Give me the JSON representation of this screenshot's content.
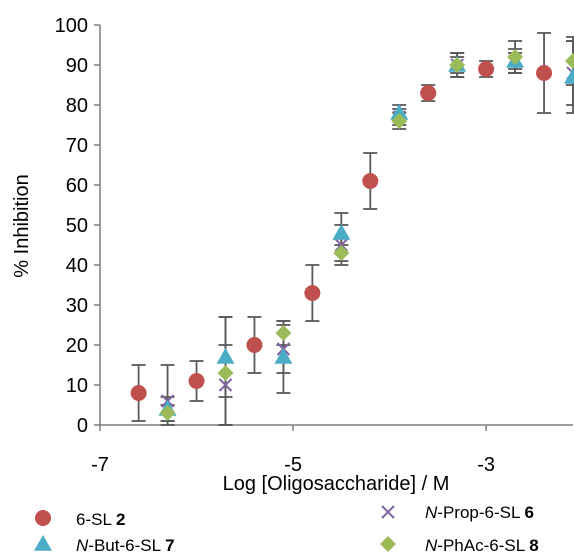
{
  "chart_data": {
    "type": "scatter",
    "xlabel": "Log [Oligosaccharide] / M",
    "ylabel": "% Inhibition",
    "xlim": [
      -7,
      -2.1
    ],
    "ylim": [
      0,
      100
    ],
    "x_ticks": [
      -7,
      -5,
      -3
    ],
    "y_ticks": [
      0,
      10,
      20,
      30,
      40,
      50,
      60,
      70,
      80,
      90,
      100
    ],
    "grid": false,
    "legend_position": "bottom",
    "series": [
      {
        "legend_prefix": "",
        "legend_main": "6-SL ",
        "legend_num": "2",
        "marker": "circle",
        "color": "#c0504d",
        "points": [
          {
            "x": -6.6,
            "y": 8,
            "err": 7
          },
          {
            "x": -6.0,
            "y": 11,
            "err": 5
          },
          {
            "x": -5.4,
            "y": 20,
            "err": 7
          },
          {
            "x": -4.8,
            "y": 33,
            "err": 7
          },
          {
            "x": -4.2,
            "y": 61,
            "err": 7
          },
          {
            "x": -3.6,
            "y": 83,
            "err": 2
          },
          {
            "x": -3.0,
            "y": 89,
            "err": 2
          },
          {
            "x": -2.4,
            "y": 88,
            "err": 10
          }
        ]
      },
      {
        "legend_prefix": "N",
        "legend_main": "-Prop-6-SL ",
        "legend_num": "6",
        "marker": "cross",
        "color": "#8064a2",
        "points": [
          {
            "x": -6.3,
            "y": 6,
            "err": 9
          },
          {
            "x": -5.7,
            "y": 10,
            "err": 10
          },
          {
            "x": -5.1,
            "y": 19,
            "err": 6
          },
          {
            "x": -4.5,
            "y": 45,
            "err": 5
          },
          {
            "x": -3.9,
            "y": 77,
            "err": 2
          },
          {
            "x": -3.3,
            "y": 90,
            "err": 2
          },
          {
            "x": -2.7,
            "y": 91,
            "err": 3
          },
          {
            "x": -2.1,
            "y": 88,
            "err": 8
          }
        ]
      },
      {
        "legend_prefix": "N",
        "legend_main": "-But-6-SL ",
        "legend_num": "7",
        "marker": "triangle",
        "color": "#4bacc6",
        "points": [
          {
            "x": -6.3,
            "y": 4,
            "err": 3
          },
          {
            "x": -5.7,
            "y": 17,
            "err": 10
          },
          {
            "x": -5.1,
            "y": 17,
            "err": 9
          },
          {
            "x": -4.5,
            "y": 48,
            "err": 5
          },
          {
            "x": -3.9,
            "y": 78,
            "err": 2
          },
          {
            "x": -3.3,
            "y": 90,
            "err": 3
          },
          {
            "x": -2.7,
            "y": 91,
            "err": 2
          },
          {
            "x": -2.1,
            "y": 87,
            "err": 9
          }
        ]
      },
      {
        "legend_prefix": "N",
        "legend_main": "-PhAc-6-SL ",
        "legend_num": "8",
        "marker": "diamond",
        "color": "#9bbb59",
        "points": [
          {
            "x": -6.3,
            "y": 3,
            "err": 2
          },
          {
            "x": -5.7,
            "y": 13,
            "err": 14
          },
          {
            "x": -5.1,
            "y": 23,
            "err": 3
          },
          {
            "x": -4.5,
            "y": 43,
            "err": 2
          },
          {
            "x": -3.9,
            "y": 76,
            "err": 2
          },
          {
            "x": -3.3,
            "y": 90,
            "err": 3
          },
          {
            "x": -2.7,
            "y": 92,
            "err": 4
          },
          {
            "x": -2.1,
            "y": 91,
            "err": 6
          }
        ]
      }
    ]
  }
}
